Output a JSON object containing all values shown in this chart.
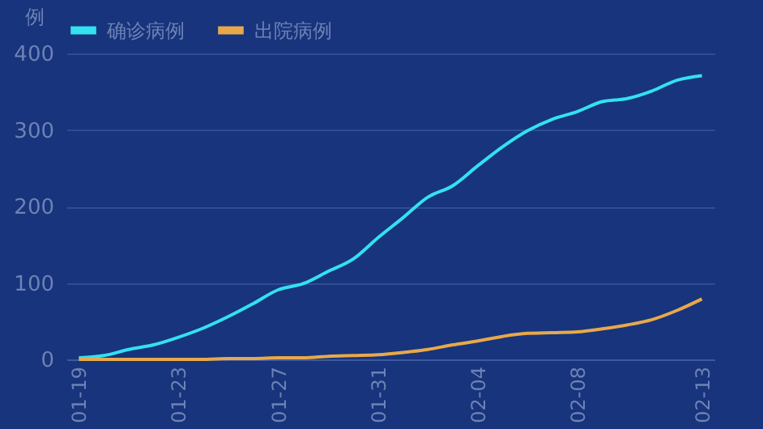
{
  "chart_data": {
    "type": "line",
    "ylabel": "例",
    "categories": [
      "01-19",
      null,
      null,
      null,
      "01-23",
      null,
      null,
      null,
      "01-27",
      null,
      null,
      null,
      "01-31",
      null,
      null,
      null,
      "02-04",
      null,
      null,
      null,
      "02-08",
      null,
      null,
      null,
      null,
      "02-13"
    ],
    "series": [
      {
        "name": "确诊病例",
        "color": "#33e1f0",
        "values": [
          2,
          5,
          13,
          19,
          29,
          41,
          56,
          73,
          91,
          99,
          115,
          131,
          159,
          185,
          212,
          227,
          253,
          278,
          299,
          314,
          324,
          337,
          341,
          351,
          365,
          371
        ]
      },
      {
        "name": "出院病例",
        "color": "#e8a84a",
        "values": [
          0,
          0,
          0,
          0,
          0,
          0,
          1,
          1,
          2,
          2,
          4,
          5,
          6,
          9,
          13,
          19,
          24,
          30,
          34,
          35,
          36,
          40,
          45,
          52,
          64,
          79
        ]
      }
    ],
    "ylim": [
      0,
      400
    ],
    "yticks": [
      0,
      100,
      200,
      300,
      400
    ],
    "grid": "y",
    "legend": "top",
    "marker": "none",
    "line_style": "solid"
  }
}
